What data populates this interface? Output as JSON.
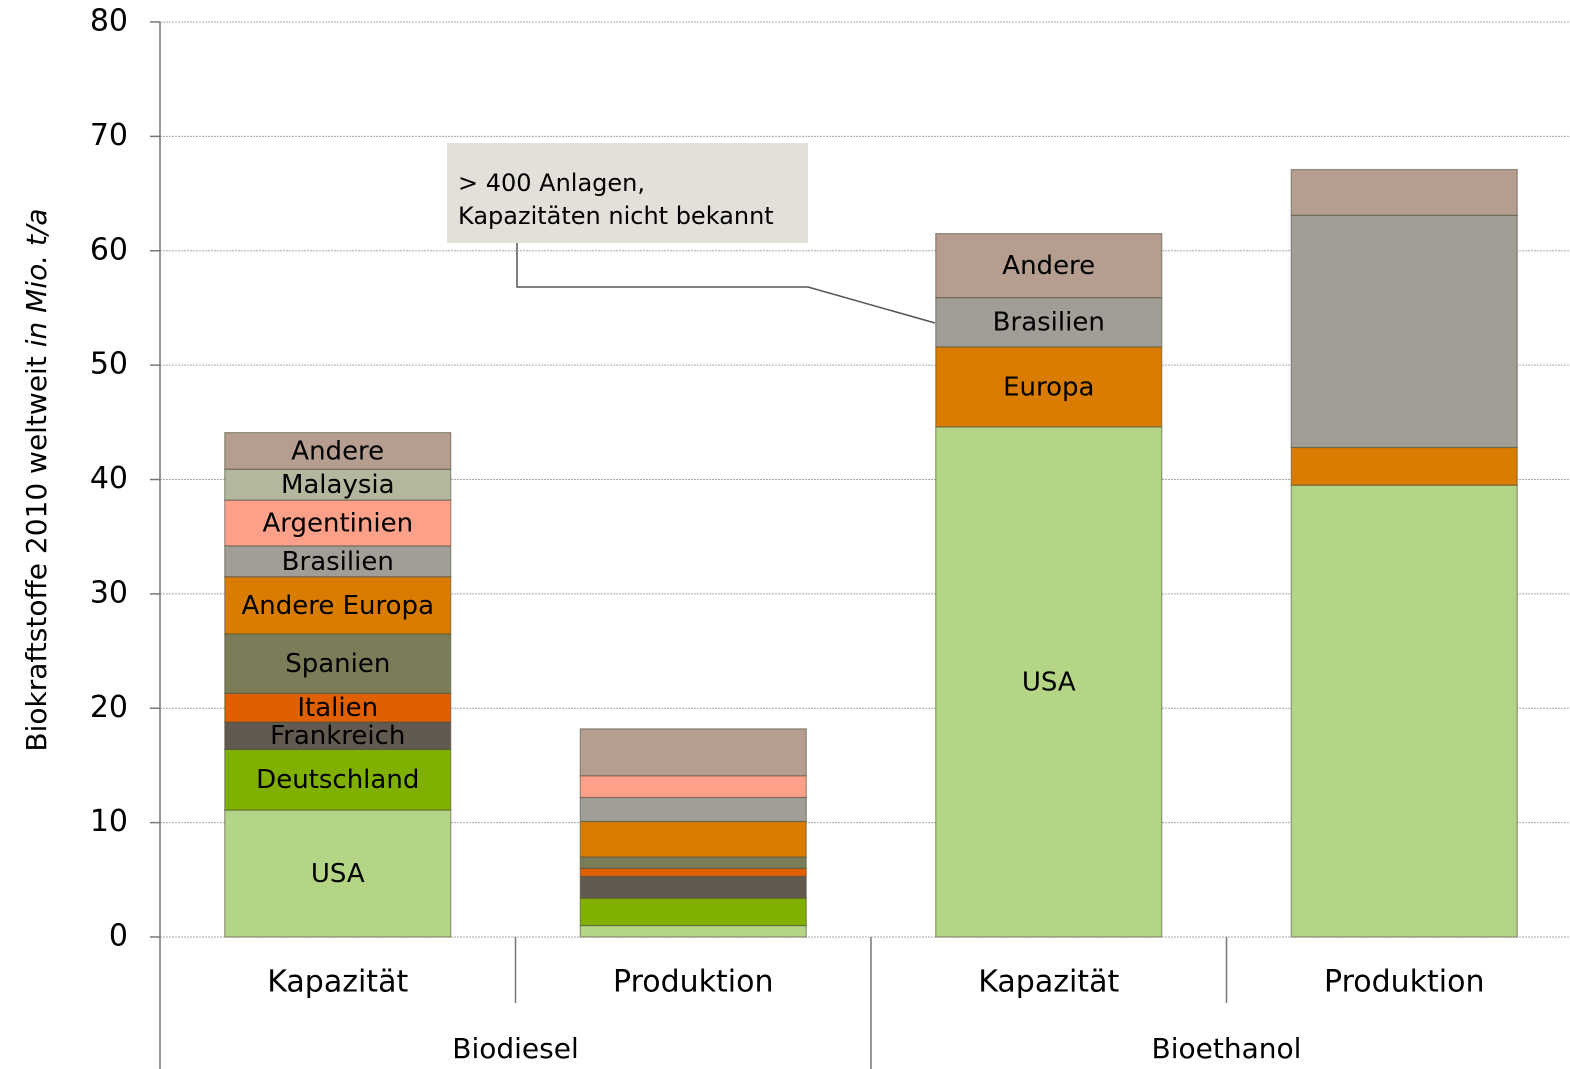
{
  "chart_data": {
    "type": "stacked_bar",
    "ylabel": [
      "Biokraftstoffe 2010 weltweit",
      "in Mio. t/a"
    ],
    "categories": [
      "Kapazität",
      "Produktion",
      "Kapazität",
      "Produktion"
    ],
    "groups": [
      "Biodiesel",
      "Bioethanol"
    ],
    "data_labels": [
      true,
      false,
      true,
      false
    ],
    "series": [
      {
        "name": "USA",
        "color": "#b3d585",
        "values": [
          11.1,
          1.0,
          44.6,
          39.5
        ]
      },
      {
        "name": "Deutschland",
        "color": "#80b000",
        "values": [
          5.3,
          2.4,
          null,
          null
        ]
      },
      {
        "name": "Frankreich",
        "color": "#635a4f",
        "values": [
          2.4,
          1.9,
          null,
          null
        ]
      },
      {
        "name": "Italien",
        "color": "#e06000",
        "values": [
          2.5,
          0.7,
          null,
          null
        ]
      },
      {
        "name": "Spanien",
        "color": "#7a7d58",
        "values": [
          5.2,
          1.0,
          null,
          null
        ]
      },
      {
        "name": "Andere Europa",
        "color": "#d97c00",
        "values": [
          5.0,
          3.1,
          null,
          null
        ]
      },
      {
        "name": "Europa",
        "color": "#d97c00",
        "values": [
          null,
          null,
          7.0,
          3.3
        ]
      },
      {
        "name": "Brasilien",
        "color": "#a09e96",
        "values": [
          2.7,
          2.1,
          4.3,
          20.3
        ]
      },
      {
        "name": "Argentinien",
        "color": "#fda08a",
        "values": [
          4.0,
          1.9,
          null,
          null
        ]
      },
      {
        "name": "Malaysia",
        "color": "#b3b79d",
        "values": [
          2.7,
          null,
          null,
          null
        ]
      },
      {
        "name": "Andere",
        "color": "#b59e90",
        "values": [
          3.2,
          4.1,
          5.6,
          4.0
        ]
      }
    ],
    "annotation": [
      "> 400 Anlagen,",
      "Kapazitäten nicht bekannt"
    ],
    "ylim": [
      0,
      80
    ],
    "yticks": [
      0,
      10,
      20,
      30,
      40,
      50,
      60,
      70,
      80
    ],
    "grid": true
  }
}
